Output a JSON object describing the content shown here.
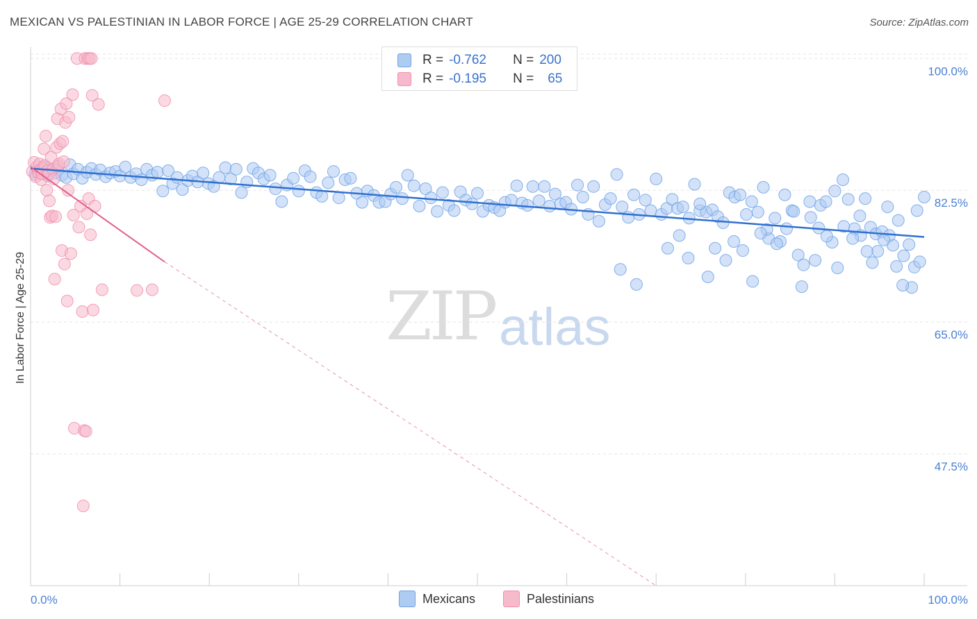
{
  "title": "MEXICAN VS PALESTINIAN IN LABOR FORCE | AGE 25-29 CORRELATION CHART",
  "source": "Source: ZipAtlas.com",
  "watermark": {
    "zip": "ZIP",
    "atlas": "atlas"
  },
  "legend": {
    "rows": [
      {
        "r_label": "R =",
        "r_value": "-0.762",
        "n_label": "N =",
        "n_value": "200",
        "color": "#aecbf2"
      },
      {
        "r_label": "R =",
        "r_value": "-0.195",
        "n_label": "N =",
        "n_value": "65",
        "color": "#f7b9cc"
      }
    ]
  },
  "bottom_legend": [
    {
      "label": "Mexicans",
      "color": "#aecbf2"
    },
    {
      "label": "Palestinians",
      "color": "#f7b9cc"
    }
  ],
  "chart_data": {
    "type": "scatter",
    "title": "MEXICAN VS PALESTINIAN IN LABOR FORCE | AGE 25-29 CORRELATION CHART",
    "xlabel": "",
    "ylabel": "In Labor Force | Age 25-29",
    "xlim": [
      0,
      100
    ],
    "ylim": [
      30,
      101.5
    ],
    "x_tick_labels": [
      "0.0%",
      "100.0%"
    ],
    "y_ticks": [
      100.0,
      82.5,
      65.0,
      47.5
    ],
    "y_tick_labels": [
      "100.0%",
      "82.5%",
      "65.0%",
      "47.5%"
    ],
    "grid": true,
    "series": [
      {
        "name": "Mexicans",
        "color": "#6fa3e8",
        "fill": "#aecbf2",
        "trend": {
          "x": [
            0,
            100
          ],
          "y": [
            85.4,
            76.3
          ]
        },
        "points": [
          [
            0.5,
            84.6
          ],
          [
            0.8,
            85.2
          ],
          [
            1.2,
            84.9
          ],
          [
            1.5,
            85.6
          ],
          [
            1.9,
            84.4
          ],
          [
            2.3,
            85.1
          ],
          [
            2.7,
            84.8
          ],
          [
            3.1,
            85.7
          ],
          [
            3.5,
            84.5
          ],
          [
            4.0,
            84.2
          ],
          [
            4.4,
            85.9
          ],
          [
            4.8,
            84.7
          ],
          [
            5.3,
            85.3
          ],
          [
            5.8,
            84.1
          ],
          [
            6.3,
            84.9
          ],
          [
            6.8,
            85.4
          ],
          [
            7.3,
            84.6
          ],
          [
            7.8,
            85.2
          ],
          [
            8.4,
            84.3
          ],
          [
            8.9,
            84.8
          ],
          [
            9.5,
            85.0
          ],
          [
            10.0,
            84.4
          ],
          [
            10.6,
            85.6
          ],
          [
            11.2,
            84.2
          ],
          [
            11.8,
            84.7
          ],
          [
            12.4,
            83.9
          ],
          [
            13.0,
            85.3
          ],
          [
            13.6,
            84.5
          ],
          [
            14.2,
            84.9
          ],
          [
            14.8,
            82.4
          ],
          [
            15.4,
            85.1
          ],
          [
            15.9,
            83.4
          ],
          [
            16.4,
            84.2
          ],
          [
            17.0,
            82.6
          ],
          [
            17.6,
            83.8
          ],
          [
            18.1,
            84.4
          ],
          [
            18.7,
            83.6
          ],
          [
            19.3,
            84.8
          ],
          [
            19.9,
            83.4
          ],
          [
            20.5,
            83.0
          ],
          [
            21.1,
            84.2
          ],
          [
            21.8,
            85.5
          ],
          [
            22.4,
            84.0
          ],
          [
            23.0,
            85.3
          ],
          [
            23.6,
            82.2
          ],
          [
            24.2,
            83.6
          ],
          [
            24.9,
            85.4
          ],
          [
            25.5,
            84.8
          ],
          [
            26.1,
            84.0
          ],
          [
            26.8,
            84.5
          ],
          [
            27.4,
            82.7
          ],
          [
            28.1,
            81.0
          ],
          [
            28.7,
            83.2
          ],
          [
            29.4,
            84.1
          ],
          [
            30.0,
            82.4
          ],
          [
            30.7,
            85.1
          ],
          [
            31.3,
            84.3
          ],
          [
            32.0,
            82.2
          ],
          [
            32.6,
            81.7
          ],
          [
            33.3,
            83.5
          ],
          [
            33.9,
            85.0
          ],
          [
            34.5,
            81.5
          ],
          [
            35.2,
            83.9
          ],
          [
            35.8,
            84.1
          ],
          [
            36.5,
            82.1
          ],
          [
            37.1,
            80.9
          ],
          [
            37.7,
            82.4
          ],
          [
            38.4,
            81.8
          ],
          [
            39.0,
            80.9
          ],
          [
            39.7,
            81.0
          ],
          [
            40.3,
            82.0
          ],
          [
            40.9,
            82.9
          ],
          [
            41.6,
            81.4
          ],
          [
            42.2,
            84.5
          ],
          [
            42.9,
            83.1
          ],
          [
            43.5,
            80.4
          ],
          [
            44.2,
            82.7
          ],
          [
            44.8,
            81.5
          ],
          [
            45.5,
            79.7
          ],
          [
            46.1,
            82.2
          ],
          [
            46.8,
            80.5
          ],
          [
            47.4,
            79.8
          ],
          [
            48.1,
            82.3
          ],
          [
            48.7,
            81.2
          ],
          [
            49.4,
            80.7
          ],
          [
            50.0,
            82.1
          ],
          [
            50.6,
            79.7
          ],
          [
            51.3,
            80.5
          ],
          [
            51.9,
            80.2
          ],
          [
            52.5,
            79.8
          ],
          [
            53.1,
            80.9
          ],
          [
            53.8,
            81.2
          ],
          [
            54.4,
            83.1
          ],
          [
            55.0,
            80.8
          ],
          [
            55.6,
            80.5
          ],
          [
            56.2,
            83.0
          ],
          [
            56.9,
            81.1
          ],
          [
            57.5,
            83.0
          ],
          [
            58.1,
            80.4
          ],
          [
            58.7,
            82.0
          ],
          [
            59.3,
            80.7
          ],
          [
            59.9,
            80.9
          ],
          [
            60.5,
            80.0
          ],
          [
            61.2,
            83.2
          ],
          [
            61.8,
            81.6
          ],
          [
            62.4,
            79.3
          ],
          [
            63.0,
            83.0
          ],
          [
            63.6,
            78.4
          ],
          [
            64.3,
            80.6
          ],
          [
            64.9,
            81.4
          ],
          [
            65.6,
            84.6
          ],
          [
            66.2,
            80.3
          ],
          [
            66.9,
            78.9
          ],
          [
            67.5,
            81.9
          ],
          [
            68.1,
            79.3
          ],
          [
            68.8,
            81.2
          ],
          [
            69.4,
            79.8
          ],
          [
            70.0,
            84.0
          ],
          [
            70.6,
            79.3
          ],
          [
            71.2,
            80.1
          ],
          [
            71.8,
            81.3
          ],
          [
            72.4,
            80.1
          ],
          [
            73.0,
            80.3
          ],
          [
            73.7,
            78.8
          ],
          [
            74.3,
            83.3
          ],
          [
            74.9,
            79.8
          ],
          [
            75.6,
            79.6
          ],
          [
            76.3,
            79.9
          ],
          [
            76.9,
            79.0
          ],
          [
            77.5,
            78.2
          ],
          [
            78.2,
            82.2
          ],
          [
            78.8,
            81.6
          ],
          [
            79.4,
            81.9
          ],
          [
            80.1,
            79.3
          ],
          [
            80.7,
            81.0
          ],
          [
            81.4,
            79.6
          ],
          [
            82.0,
            82.9
          ],
          [
            82.6,
            76.1
          ],
          [
            83.3,
            78.8
          ],
          [
            83.9,
            75.7
          ],
          [
            84.6,
            77.4
          ],
          [
            85.2,
            79.8
          ],
          [
            85.9,
            73.9
          ],
          [
            86.5,
            72.6
          ],
          [
            87.2,
            81.0
          ],
          [
            87.8,
            73.2
          ],
          [
            88.4,
            80.5
          ],
          [
            89.0,
            81.0
          ],
          [
            89.7,
            75.6
          ],
          [
            90.3,
            72.2
          ],
          [
            90.9,
            83.9
          ],
          [
            91.5,
            81.3
          ],
          [
            92.2,
            77.4
          ],
          [
            92.8,
            79.1
          ],
          [
            93.4,
            81.4
          ],
          [
            94.0,
            77.6
          ],
          [
            94.6,
            76.7
          ],
          [
            95.3,
            77.0
          ],
          [
            95.9,
            80.3
          ],
          [
            96.5,
            75.2
          ],
          [
            97.1,
            78.5
          ],
          [
            97.7,
            73.8
          ],
          [
            98.3,
            75.3
          ],
          [
            98.9,
            72.3
          ],
          [
            99.5,
            73.0
          ],
          [
            100.0,
            81.6
          ],
          [
            99.2,
            79.8
          ],
          [
            98.6,
            69.6
          ],
          [
            97.6,
            69.9
          ],
          [
            96.9,
            72.4
          ],
          [
            96.1,
            76.5
          ],
          [
            95.5,
            75.9
          ],
          [
            94.8,
            74.4
          ],
          [
            94.2,
            72.9
          ],
          [
            93.6,
            74.4
          ],
          [
            92.9,
            76.5
          ],
          [
            92.0,
            76.1
          ],
          [
            91.0,
            77.7
          ],
          [
            90.0,
            82.4
          ],
          [
            89.1,
            76.4
          ],
          [
            88.2,
            77.5
          ],
          [
            87.3,
            78.9
          ],
          [
            86.3,
            69.7
          ],
          [
            85.4,
            79.7
          ],
          [
            84.4,
            81.9
          ],
          [
            83.5,
            75.4
          ],
          [
            82.4,
            77.3
          ],
          [
            81.7,
            76.8
          ],
          [
            80.8,
            70.4
          ],
          [
            79.7,
            74.5
          ],
          [
            78.7,
            75.7
          ],
          [
            77.8,
            73.2
          ],
          [
            76.6,
            74.8
          ],
          [
            75.8,
            71.0
          ],
          [
            74.9,
            80.7
          ],
          [
            73.6,
            73.5
          ],
          [
            72.6,
            76.5
          ],
          [
            71.3,
            74.8
          ],
          [
            67.8,
            70.0
          ],
          [
            66.0,
            72.0
          ]
        ]
      },
      {
        "name": "Palestinians",
        "color": "#f08fad",
        "fill": "#f7b9cc",
        "trend": {
          "x": [
            0,
            15
          ],
          "y": [
            85.6,
            73.0
          ]
        },
        "trend_extension": {
          "x": [
            15,
            70
          ],
          "y": [
            73.0,
            30.0
          ]
        },
        "points": [
          [
            0.2,
            85.0
          ],
          [
            0.4,
            86.2
          ],
          [
            0.6,
            84.3
          ],
          [
            0.7,
            85.6
          ],
          [
            0.9,
            84.8
          ],
          [
            1.0,
            86.0
          ],
          [
            1.1,
            85.2
          ],
          [
            1.2,
            83.9
          ],
          [
            1.3,
            84.7
          ],
          [
            1.4,
            85.4
          ],
          [
            1.5,
            88.0
          ],
          [
            1.6,
            85.8
          ],
          [
            1.7,
            89.7
          ],
          [
            1.8,
            82.5
          ],
          [
            1.9,
            85.1
          ],
          [
            2.0,
            84.6
          ],
          [
            2.1,
            81.1
          ],
          [
            2.2,
            78.9
          ],
          [
            2.3,
            86.9
          ],
          [
            2.4,
            79.1
          ],
          [
            2.5,
            85.3
          ],
          [
            2.6,
            84.0
          ],
          [
            2.7,
            70.7
          ],
          [
            2.8,
            79.0
          ],
          [
            2.9,
            88.2
          ],
          [
            3.0,
            92.0
          ],
          [
            3.1,
            85.7
          ],
          [
            3.2,
            86.0
          ],
          [
            3.3,
            88.7
          ],
          [
            3.4,
            93.3
          ],
          [
            3.5,
            74.5
          ],
          [
            3.6,
            89.0
          ],
          [
            3.7,
            86.3
          ],
          [
            3.8,
            72.7
          ],
          [
            3.9,
            91.5
          ],
          [
            4.0,
            94.0
          ],
          [
            4.1,
            67.8
          ],
          [
            4.3,
            92.2
          ],
          [
            4.5,
            74.1
          ],
          [
            4.7,
            95.2
          ],
          [
            4.8,
            79.2
          ],
          [
            4.9,
            50.9
          ],
          [
            5.2,
            100.0
          ],
          [
            5.4,
            77.6
          ],
          [
            4.2,
            82.5
          ],
          [
            5.6,
            80.4
          ],
          [
            5.8,
            66.4
          ],
          [
            6.0,
            50.6
          ],
          [
            6.2,
            50.5
          ],
          [
            5.9,
            40.6
          ],
          [
            6.1,
            100.0
          ],
          [
            6.4,
            100.0
          ],
          [
            6.6,
            100.0
          ],
          [
            6.8,
            100.0
          ],
          [
            6.3,
            79.4
          ],
          [
            6.5,
            81.4
          ],
          [
            6.9,
            95.1
          ],
          [
            6.7,
            76.6
          ],
          [
            7.0,
            66.6
          ],
          [
            7.2,
            80.4
          ],
          [
            7.6,
            93.9
          ],
          [
            8.0,
            69.3
          ],
          [
            11.9,
            69.2
          ],
          [
            13.6,
            69.3
          ],
          [
            15.0,
            94.4
          ]
        ]
      }
    ]
  }
}
